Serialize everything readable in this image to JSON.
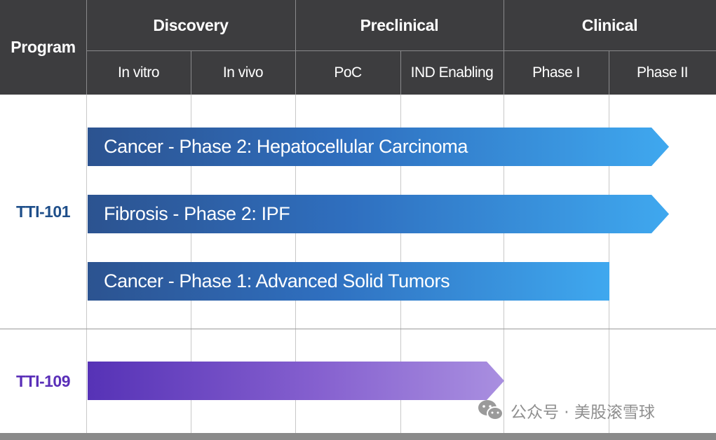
{
  "header": {
    "program_label": "Program",
    "groups": [
      "Discovery",
      "Preclinical",
      "Clinical"
    ],
    "stages": [
      "In vitro",
      "In vivo",
      "PoC",
      "IND Enabling",
      "Phase I",
      "Phase II"
    ]
  },
  "programs": [
    {
      "name": "TTI-101",
      "color": "#1f4f8a",
      "bars": [
        {
          "label": "Cancer - Phase 2: Hepatocellular Carcinoma",
          "extends_to": "Phase II"
        },
        {
          "label": "Fibrosis - Phase 2: IPF",
          "extends_to": "Phase II"
        },
        {
          "label": "Cancer - Phase 1: Advanced Solid Tumors",
          "extends_to": "Phase I"
        }
      ]
    },
    {
      "name": "TTI-109",
      "color": "#5a2fb8",
      "bars": [
        {
          "label": "",
          "extends_to": "IND Enabling"
        }
      ]
    }
  ],
  "colors": {
    "header_bg": "#3d3d3f",
    "blue_bar_start": "#2c5390",
    "blue_bar_end": "#3fa8ef",
    "purple_bar_start": "#5632b6",
    "purple_bar_end": "#a98fe0"
  },
  "watermark": {
    "icon": "wechat-icon",
    "text": "公众号 · 美股滚雪球"
  }
}
